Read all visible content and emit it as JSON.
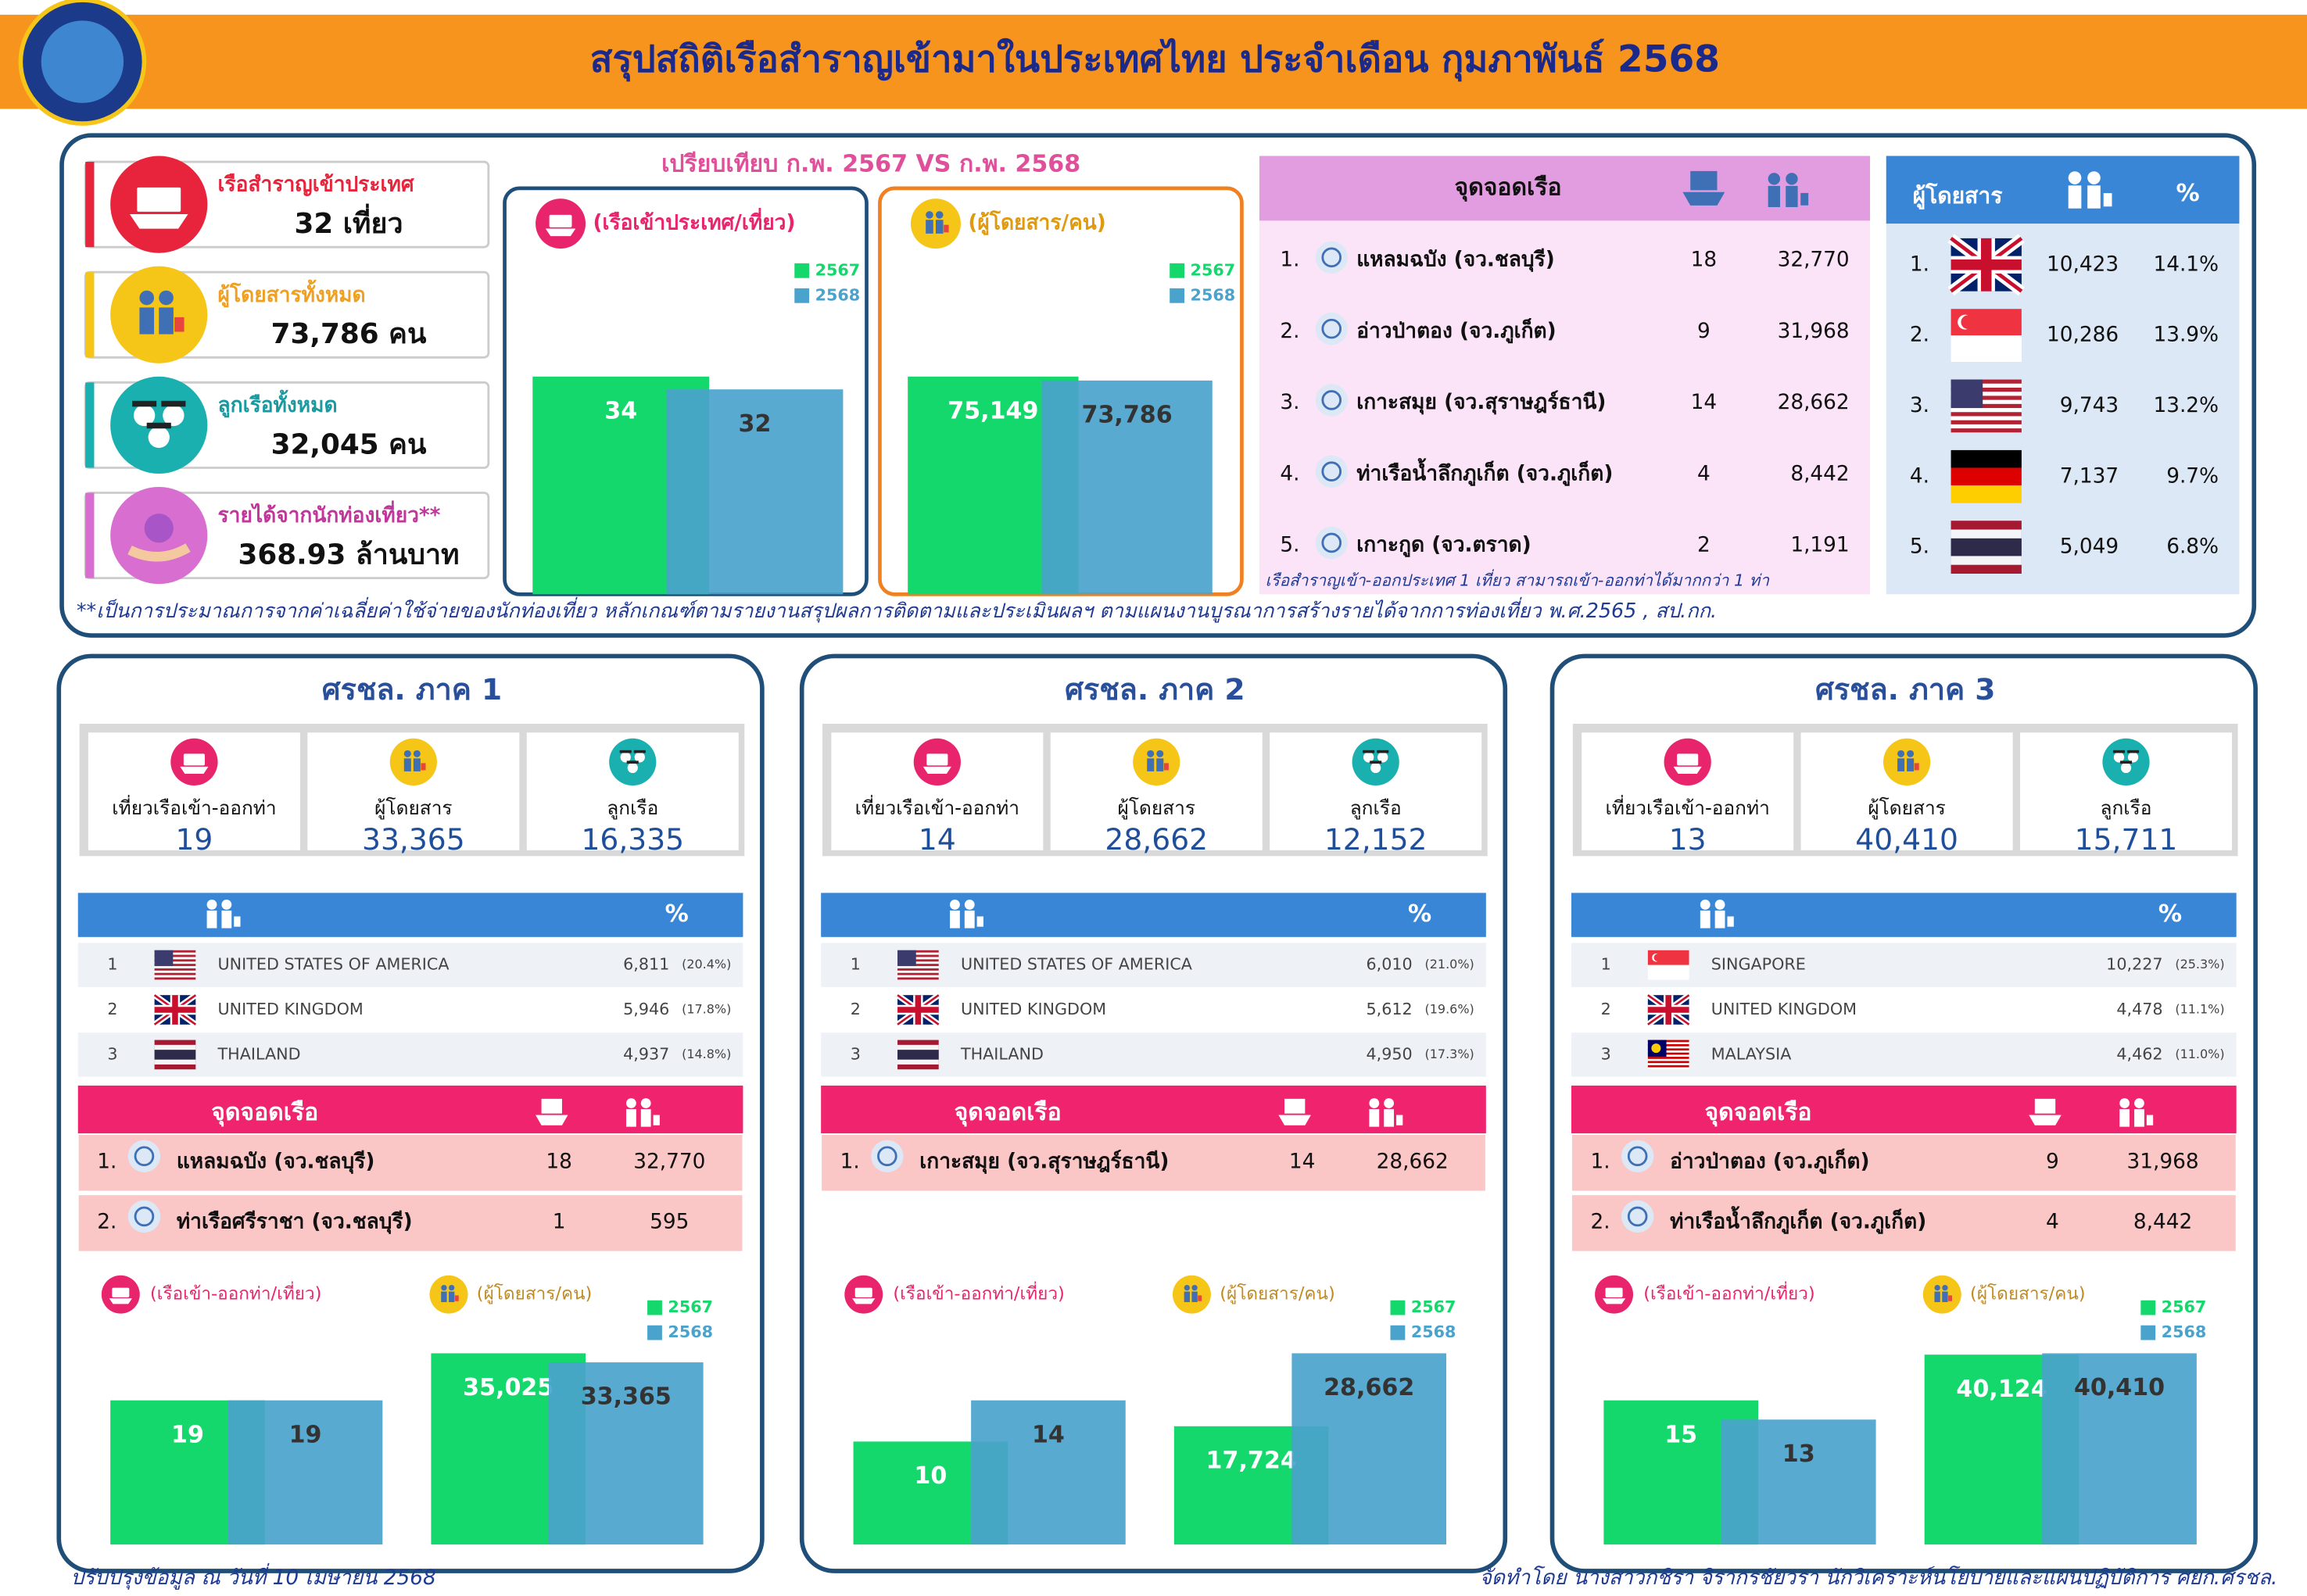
{
  "header": {
    "title": "สรุปสถิติเรือสำราญเข้ามาในประเทศไทย ประจำเดือน กุมภาพันธ์ 2568"
  },
  "summary": [
    {
      "label": "เรือสำราญเข้าประเทศ",
      "value": "32 เที่ยว"
    },
    {
      "label": "ผู้โดยสารทั้งหมด",
      "value": "73,786 คน"
    },
    {
      "label": "ลูกเรือทั้งหมด",
      "value": "32,045 คน"
    },
    {
      "label": "รายได้จากนักท่องเที่ยว**",
      "value": "368.93 ล้านบาท"
    }
  ],
  "summary_note": "**เป็นการประมาณการจากค่าเฉลี่ยค่าใช้จ่ายของนักท่องเที่ยว หลักเกณฑ์ตามรายงานสรุปผลการติดตามและประเมินผลฯ ตามแผนงานบูรณาการสร้างรายได้จากการท่องเที่ยว พ.ศ.2565 , สป.กก.",
  "comparison_title": "เปรียบเทียบ ก.พ. 2567 VS ก.พ. 2568",
  "chart_data": [
    {
      "type": "bar",
      "title": "(เรือเข้าประเทศ/เที่ยว)",
      "series": [
        {
          "name": "2567",
          "color": "#14d86c",
          "values": [
            34
          ]
        },
        {
          "name": "2568",
          "color": "#4aa3cc",
          "values": [
            32
          ]
        }
      ]
    },
    {
      "type": "bar",
      "title": "(ผู้โดยสาร/คน)",
      "series": [
        {
          "name": "2567",
          "color": "#14d86c",
          "values": [
            75149
          ],
          "value_labels": [
            "75,149"
          ]
        },
        {
          "name": "2568",
          "color": "#4aa3cc",
          "values": [
            73786
          ],
          "value_labels": [
            "73,786"
          ]
        }
      ]
    },
    {
      "type": "bar",
      "categories": [
        "(เรือเข้า-ออกท่า/เที่ยว)",
        "(ผู้โดยสาร/คน)"
      ],
      "series": [
        {
          "name": "2567",
          "color": "#14d86c",
          "values": [
            19,
            35025
          ],
          "value_labels": [
            "19",
            "35,025"
          ]
        },
        {
          "name": "2568",
          "color": "#4aa3cc",
          "values": [
            19,
            33365
          ],
          "value_labels": [
            "19",
            "33,365"
          ]
        }
      ]
    },
    {
      "type": "bar",
      "categories": [
        "(เรือเข้า-ออกท่า/เที่ยว)",
        "(ผู้โดยสาร/คน)"
      ],
      "series": [
        {
          "name": "2567",
          "color": "#14d86c",
          "values": [
            10,
            17724
          ],
          "value_labels": [
            "10",
            "17,724"
          ]
        },
        {
          "name": "2568",
          "color": "#4aa3cc",
          "values": [
            14,
            28662
          ],
          "value_labels": [
            "14",
            "28,662"
          ]
        }
      ]
    },
    {
      "type": "bar",
      "categories": [
        "(เรือเข้า-ออกท่า/เที่ยว)",
        "(ผู้โดยสาร/คน)"
      ],
      "series": [
        {
          "name": "2567",
          "color": "#14d86c",
          "values": [
            15,
            40124
          ],
          "value_labels": [
            "15",
            "40,124"
          ]
        },
        {
          "name": "2568",
          "color": "#4aa3cc",
          "values": [
            13,
            40410
          ],
          "value_labels": [
            "13",
            "40,410"
          ]
        }
      ]
    }
  ],
  "ports": {
    "header": "จุดจอดเรือ",
    "rows": [
      [
        "1.",
        "แหลมฉบัง (จว.ชลบุรี)",
        "18",
        "32,770"
      ],
      [
        "2.",
        "อ่าวป่าตอง (จว.ภูเก็ต)",
        "9",
        "31,968"
      ],
      [
        "3.",
        "เกาะสมุย (จว.สุราษฎร์ธานี)",
        "14",
        "28,662"
      ],
      [
        "4.",
        "ท่าเรือน้ำลึกภูเก็ต (จว.ภูเก็ต)",
        "4",
        "8,442"
      ],
      [
        "5.",
        "เกาะกูด (จว.ตราด)",
        "2",
        "1,191"
      ]
    ],
    "note": "เรือสำราญเข้า-ออกประเทศ 1 เที่ยว สามารถเข้า-ออกท่าได้มากกว่า 1 ท่า"
  },
  "nationalities": {
    "header": "ผู้โดยสาร",
    "percent_header": "%",
    "rows": [
      [
        "1.",
        "10,423",
        "14.1%"
      ],
      [
        "2.",
        "10,286",
        "13.9%"
      ],
      [
        "3.",
        "9,743",
        "13.2%"
      ],
      [
        "4.",
        "7,137",
        "9.7%"
      ],
      [
        "5.",
        "5,049",
        "6.8%"
      ]
    ]
  },
  "regions": [
    {
      "title": "ศรชล. ภาค 1",
      "stats": [
        {
          "label": "เที่ยวเรือเข้า-ออกท่า",
          "value": "19"
        },
        {
          "label": "ผู้โดยสาร",
          "value": "33,365"
        },
        {
          "label": "ลูกเรือ",
          "value": "16,335"
        }
      ],
      "nationalities": {
        "percent_header": "%",
        "rows": [
          [
            "1",
            "UNITED STATES OF AMERICA",
            "6,811",
            "(20.4%)"
          ],
          [
            "2",
            "UNITED KINGDOM",
            "5,946",
            "(17.8%)"
          ],
          [
            "3",
            "THAILAND",
            "4,937",
            "(14.8%)"
          ]
        ]
      },
      "ports": {
        "header": "จุดจอดเรือ",
        "rows": [
          [
            "1.",
            "แหลมฉบัง (จว.ชลบุรี)",
            "18",
            "32,770"
          ],
          [
            "2.",
            "ท่าเรือศรีราชา (จว.ชลบุรี)",
            "1",
            "595"
          ]
        ]
      }
    },
    {
      "title": "ศรชล. ภาค 2",
      "stats": [
        {
          "label": "เที่ยวเรือเข้า-ออกท่า",
          "value": "14"
        },
        {
          "label": "ผู้โดยสาร",
          "value": "28,662"
        },
        {
          "label": "ลูกเรือ",
          "value": "12,152"
        }
      ],
      "nationalities": {
        "percent_header": "%",
        "rows": [
          [
            "1",
            "UNITED STATES OF AMERICA",
            "6,010",
            "(21.0%)"
          ],
          [
            "2",
            "UNITED KINGDOM",
            "5,612",
            "(19.6%)"
          ],
          [
            "3",
            "THAILAND",
            "4,950",
            "(17.3%)"
          ]
        ]
      },
      "ports": {
        "header": "จุดจอดเรือ",
        "rows": [
          [
            "1.",
            "เกาะสมุย (จว.สุราษฎร์ธานี)",
            "14",
            "28,662"
          ]
        ]
      }
    },
    {
      "title": "ศรชล. ภาค 3",
      "stats": [
        {
          "label": "เที่ยวเรือเข้า-ออกท่า",
          "value": "13"
        },
        {
          "label": "ผู้โดยสาร",
          "value": "40,410"
        },
        {
          "label": "ลูกเรือ",
          "value": "15,711"
        }
      ],
      "nationalities": {
        "percent_header": "%",
        "rows": [
          [
            "1",
            "SINGAPORE",
            "10,227",
            "(25.3%)"
          ],
          [
            "2",
            "UNITED KINGDOM",
            "4,478",
            "(11.1%)"
          ],
          [
            "3",
            "MALAYSIA",
            "4,462",
            "(11.0%)"
          ]
        ]
      },
      "ports": {
        "header": "จุดจอดเรือ",
        "rows": [
          [
            "1.",
            "อ่าวป่าตอง (จว.ภูเก็ต)",
            "9",
            "31,968"
          ],
          [
            "2.",
            "ท่าเรือน้ำลึกภูเก็ต (จว.ภูเก็ต)",
            "4",
            "8,442"
          ]
        ]
      }
    }
  ],
  "footer": {
    "updated": "ปรับปรุงข้อมูล ณ วันที่ 10 เมษายน 2568",
    "prepared_by": "จัดทำโดย นางสาวกชิรา จิรากรชัยวรา นักวิเคราะห์นโยบายและแผนปฏิบัติการ ศยก.ศรชล."
  }
}
